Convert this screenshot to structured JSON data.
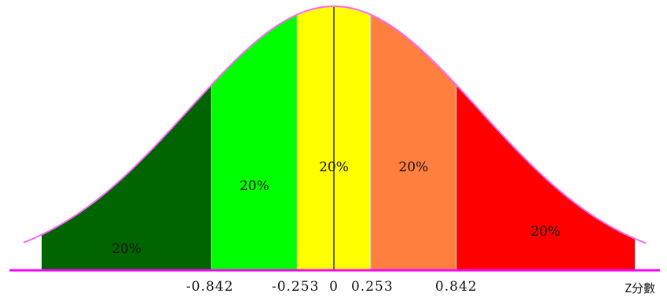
{
  "chart_data": {
    "type": "area",
    "title": "",
    "distribution": "standard normal",
    "xlabel": "Z分數",
    "ylabel": "",
    "xlim": [
      -3.0,
      3.0
    ],
    "boundaries": [
      -0.842,
      -0.253,
      0,
      0.253,
      0.842
    ],
    "tick_labels": [
      "-0.842",
      "-0.253",
      "0",
      "0.253",
      "0.842"
    ],
    "segments": [
      {
        "from": -3.0,
        "to": -0.842,
        "label": "20%",
        "color": "#006400"
      },
      {
        "from": -0.842,
        "to": -0.253,
        "label": "20%",
        "color": "#00FF00"
      },
      {
        "from": -0.253,
        "to": 0.253,
        "label": "20%",
        "color": "#FFFF00"
      },
      {
        "from": 0.253,
        "to": 0.842,
        "label": "20%",
        "color": "#FF7F3F"
      },
      {
        "from": 0.842,
        "to": 3.0,
        "label": "20%",
        "color": "#FF0000"
      }
    ],
    "curve_color": "#FF66FF",
    "axis_color": "#FF00FF",
    "grid": false
  }
}
